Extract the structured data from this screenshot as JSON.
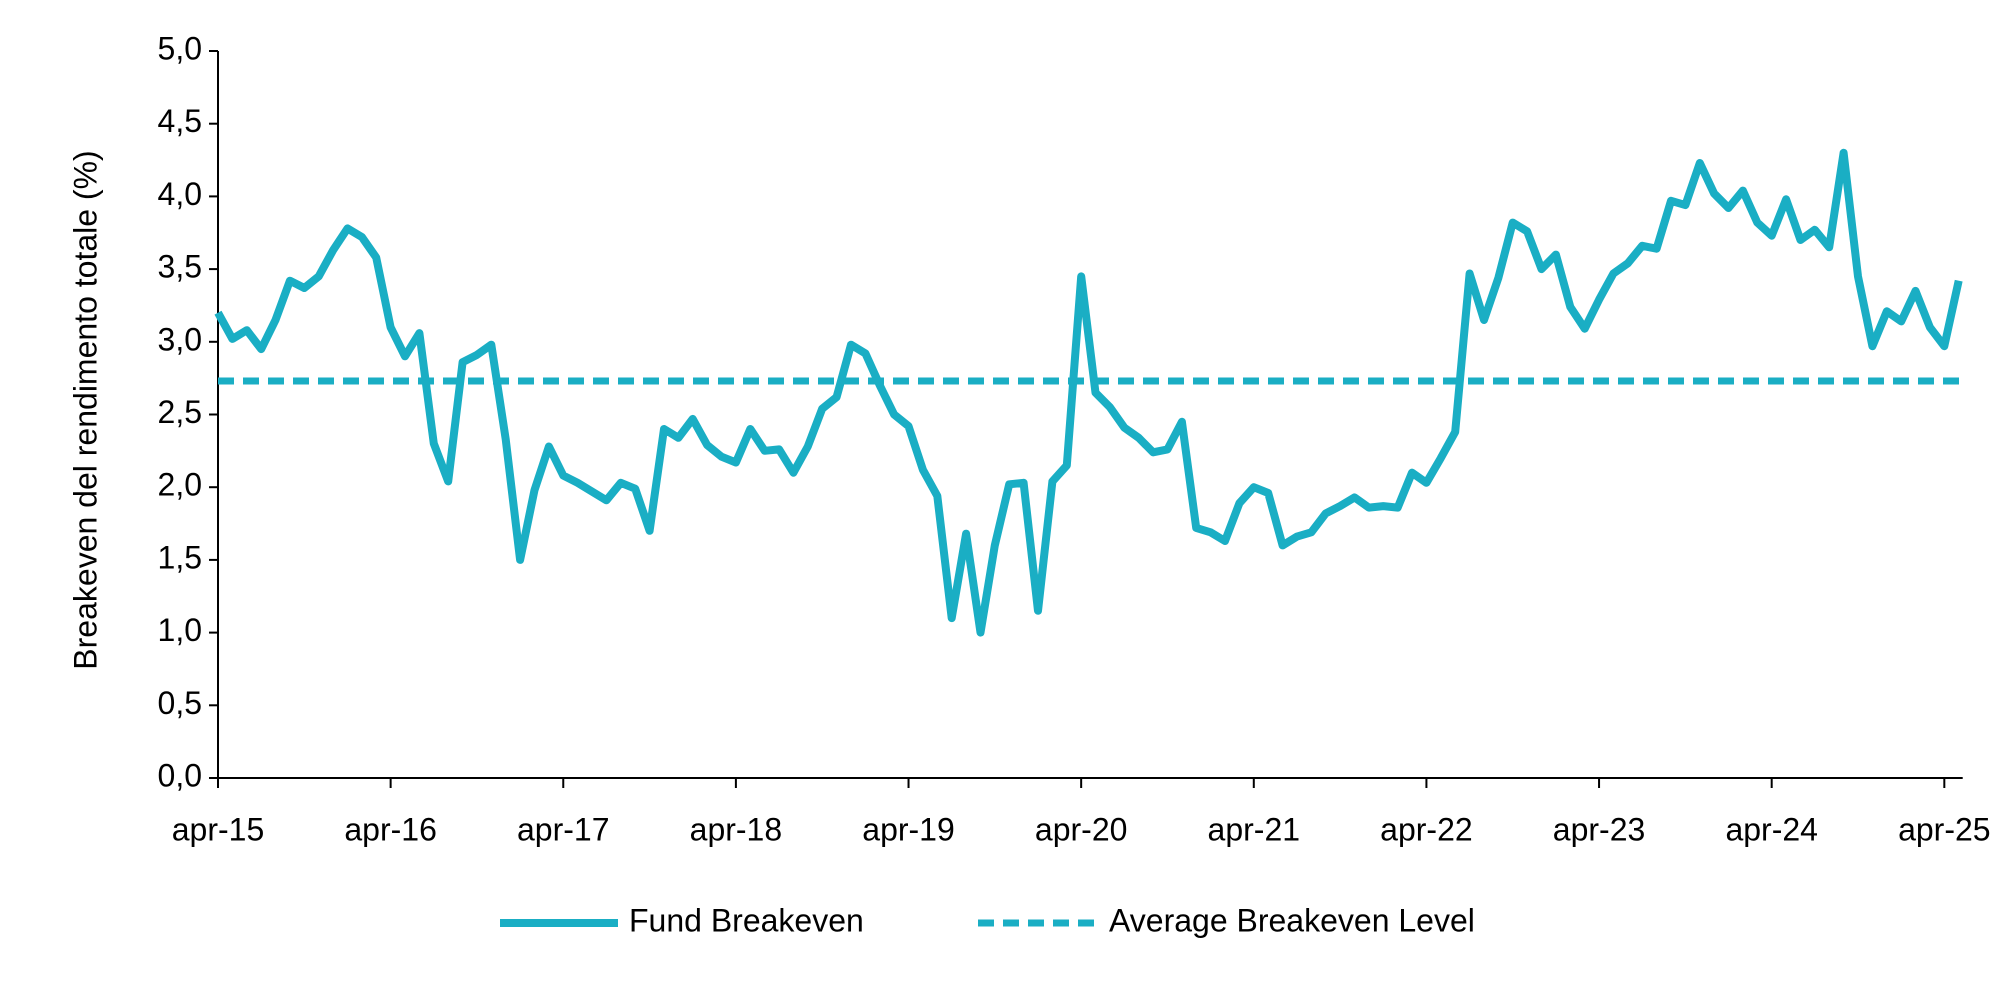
{
  "chart_data": {
    "type": "line",
    "y_label": "Breakeven del rendimento totale (%)",
    "categories": [
      "apr-15",
      null,
      null,
      null,
      null,
      null,
      null,
      null,
      null,
      null,
      null,
      null,
      "apr-16",
      null,
      null,
      null,
      null,
      null,
      null,
      null,
      null,
      null,
      null,
      null,
      "apr-17",
      null,
      null,
      null,
      null,
      null,
      null,
      null,
      null,
      null,
      null,
      null,
      "apr-18",
      null,
      null,
      null,
      null,
      null,
      null,
      null,
      null,
      null,
      null,
      null,
      "apr-19",
      null,
      null,
      null,
      null,
      null,
      null,
      null,
      null,
      null,
      null,
      null,
      "apr-20",
      null,
      null,
      null,
      null,
      null,
      null,
      null,
      null,
      null,
      null,
      null,
      "apr-21",
      null,
      null,
      null,
      null,
      null,
      null,
      null,
      null,
      null,
      null,
      null,
      "apr-22",
      null,
      null,
      null,
      null,
      null,
      null,
      null,
      null,
      null,
      null,
      null,
      "apr-23",
      null,
      null,
      null,
      null,
      null,
      null,
      null,
      null,
      null,
      null,
      null,
      "apr-24",
      null,
      null,
      null,
      null,
      null,
      null,
      null,
      null,
      null,
      null,
      null,
      "apr-25",
      null
    ],
    "series": [
      {
        "name": "Fund Breakeven",
        "color": "#1aaec4",
        "values": [
          3.2,
          3.02,
          3.08,
          2.95,
          3.15,
          3.42,
          3.37,
          3.45,
          3.63,
          3.78,
          3.72,
          3.58,
          3.1,
          2.9,
          3.06,
          2.3,
          2.04,
          2.86,
          2.91,
          2.98,
          2.33,
          1.5,
          1.98,
          2.28,
          2.08,
          2.03,
          1.97,
          1.91,
          2.03,
          1.99,
          1.7,
          2.4,
          2.34,
          2.47,
          2.29,
          2.21,
          2.17,
          2.4,
          2.25,
          2.26,
          2.1,
          2.28,
          2.54,
          2.62,
          2.98,
          2.92,
          2.7,
          2.5,
          2.42,
          2.12,
          1.94,
          1.1,
          1.68,
          1.0,
          1.6,
          2.02,
          2.03,
          1.15,
          2.04,
          2.15,
          3.45,
          2.65,
          2.55,
          2.41,
          2.34,
          2.24,
          2.26,
          2.45,
          1.72,
          1.69,
          1.63,
          1.89,
          2.0,
          1.96,
          1.6,
          1.66,
          1.69,
          1.82,
          1.87,
          1.93,
          1.86,
          1.87,
          1.86,
          2.1,
          2.03,
          2.2,
          2.38,
          3.47,
          3.15,
          3.44,
          3.82,
          3.76,
          3.5,
          3.6,
          3.24,
          3.09,
          3.29,
          3.47,
          3.54,
          3.66,
          3.64,
          3.97,
          3.94,
          4.23,
          4.02,
          3.92,
          4.04,
          3.82,
          3.73,
          3.98,
          3.7,
          3.77,
          3.65,
          4.3,
          3.45,
          2.97,
          3.21,
          3.14,
          3.35,
          3.1,
          2.97,
          3.42
        ]
      }
    ],
    "average": {
      "name": "Average Breakeven Level",
      "value": 2.73,
      "color": "#1aaec4"
    },
    "ylim": [
      0,
      5
    ],
    "yticks": [
      {
        "value": 0,
        "label": "0,0"
      },
      {
        "value": 0.5,
        "label": "0,5"
      },
      {
        "value": 1,
        "label": "1,0"
      },
      {
        "value": 1.5,
        "label": "1,5"
      },
      {
        "value": 2,
        "label": "2,0"
      },
      {
        "value": 2.5,
        "label": "2,5"
      },
      {
        "value": 3,
        "label": "3,0"
      },
      {
        "value": 3.5,
        "label": "3,5"
      },
      {
        "value": 4,
        "label": "4,0"
      },
      {
        "value": 4.5,
        "label": "4,5"
      },
      {
        "value": 5,
        "label": "5,0"
      }
    ],
    "grid": false,
    "legend": "bottom"
  }
}
